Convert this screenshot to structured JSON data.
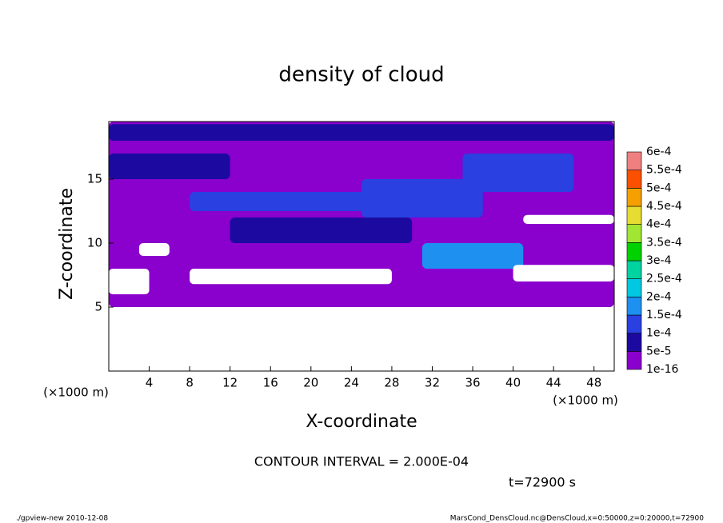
{
  "chart_data": {
    "type": "contour",
    "title": "density of cloud",
    "xlabel": "X-coordinate",
    "ylabel": "Z-coordinate",
    "xunit": "(×1000 m)",
    "xunit2": "(×1000 m)",
    "xlim": [
      0,
      50
    ],
    "xticks": [
      4,
      8,
      12,
      16,
      20,
      24,
      28,
      32,
      36,
      40,
      44,
      48
    ],
    "ylim": [
      0,
      19.5
    ],
    "yticks": [
      5,
      10,
      15
    ],
    "levels": [
      {
        "value": 1e-16,
        "label": "1e-16"
      },
      {
        "value": 5e-05,
        "label": "5e-5"
      },
      {
        "value": 0.0001,
        "label": "1e-4"
      },
      {
        "value": 0.00015,
        "label": "1.5e-4"
      },
      {
        "value": 0.0002,
        "label": "2e-4"
      },
      {
        "value": 0.00025,
        "label": "2.5e-4"
      },
      {
        "value": 0.0003,
        "label": "3e-4"
      },
      {
        "value": 0.00035,
        "label": "3.5e-4"
      },
      {
        "value": 0.0004,
        "label": "4e-4"
      },
      {
        "value": 0.00045,
        "label": "4.5e-4"
      },
      {
        "value": 0.0005,
        "label": "5e-4"
      },
      {
        "value": 0.00055,
        "label": "5.5e-4"
      },
      {
        "value": 0.0006,
        "label": "6e-4"
      }
    ],
    "colors": [
      "#8a00cc",
      "#1c0aa0",
      "#2a40e0",
      "#1e90f0",
      "#00c8e0",
      "#00d2a0",
      "#00d200",
      "#a0e632",
      "#e6dc32",
      "#f5a000",
      "#fa5000",
      "#f08080"
    ],
    "regions": [
      {
        "x": [
          0,
          50
        ],
        "z": [
          5,
          19.5
        ],
        "value": 1e-16
      },
      {
        "x": [
          0,
          50
        ],
        "z": [
          18,
          19.3
        ],
        "value": 5e-05
      },
      {
        "x": [
          0,
          12
        ],
        "z": [
          15,
          17
        ],
        "value": 5e-05
      },
      {
        "x": [
          12,
          30
        ],
        "z": [
          10,
          12
        ],
        "value": 5e-05
      },
      {
        "x": [
          8,
          30
        ],
        "z": [
          12.5,
          14
        ],
        "value": 0.0001
      },
      {
        "x": [
          25,
          37
        ],
        "z": [
          12,
          15
        ],
        "value": 0.0001
      },
      {
        "x": [
          35,
          46
        ],
        "z": [
          14,
          17
        ],
        "value": 0.0001
      },
      {
        "x": [
          31,
          41
        ],
        "z": [
          8,
          10
        ],
        "value": 0.00015
      }
    ],
    "gaps": [
      {
        "x": [
          3,
          6
        ],
        "z": [
          9,
          10
        ]
      },
      {
        "x": [
          0,
          4
        ],
        "z": [
          6,
          8
        ]
      },
      {
        "x": [
          8,
          28
        ],
        "z": [
          6.8,
          8
        ]
      },
      {
        "x": [
          40,
          50
        ],
        "z": [
          7,
          8.3
        ]
      },
      {
        "x": [
          41,
          50
        ],
        "z": [
          11.5,
          12.2
        ]
      }
    ],
    "contour_interval": "CONTOUR INTERVAL = 2.000E-04",
    "time": "t=72900 s",
    "footer_left": "./gpview-new  2010-12-08",
    "footer_right": "MarsCond_DensCloud.nc@DensCloud,x=0:50000,z=0:20000,t=72900"
  }
}
